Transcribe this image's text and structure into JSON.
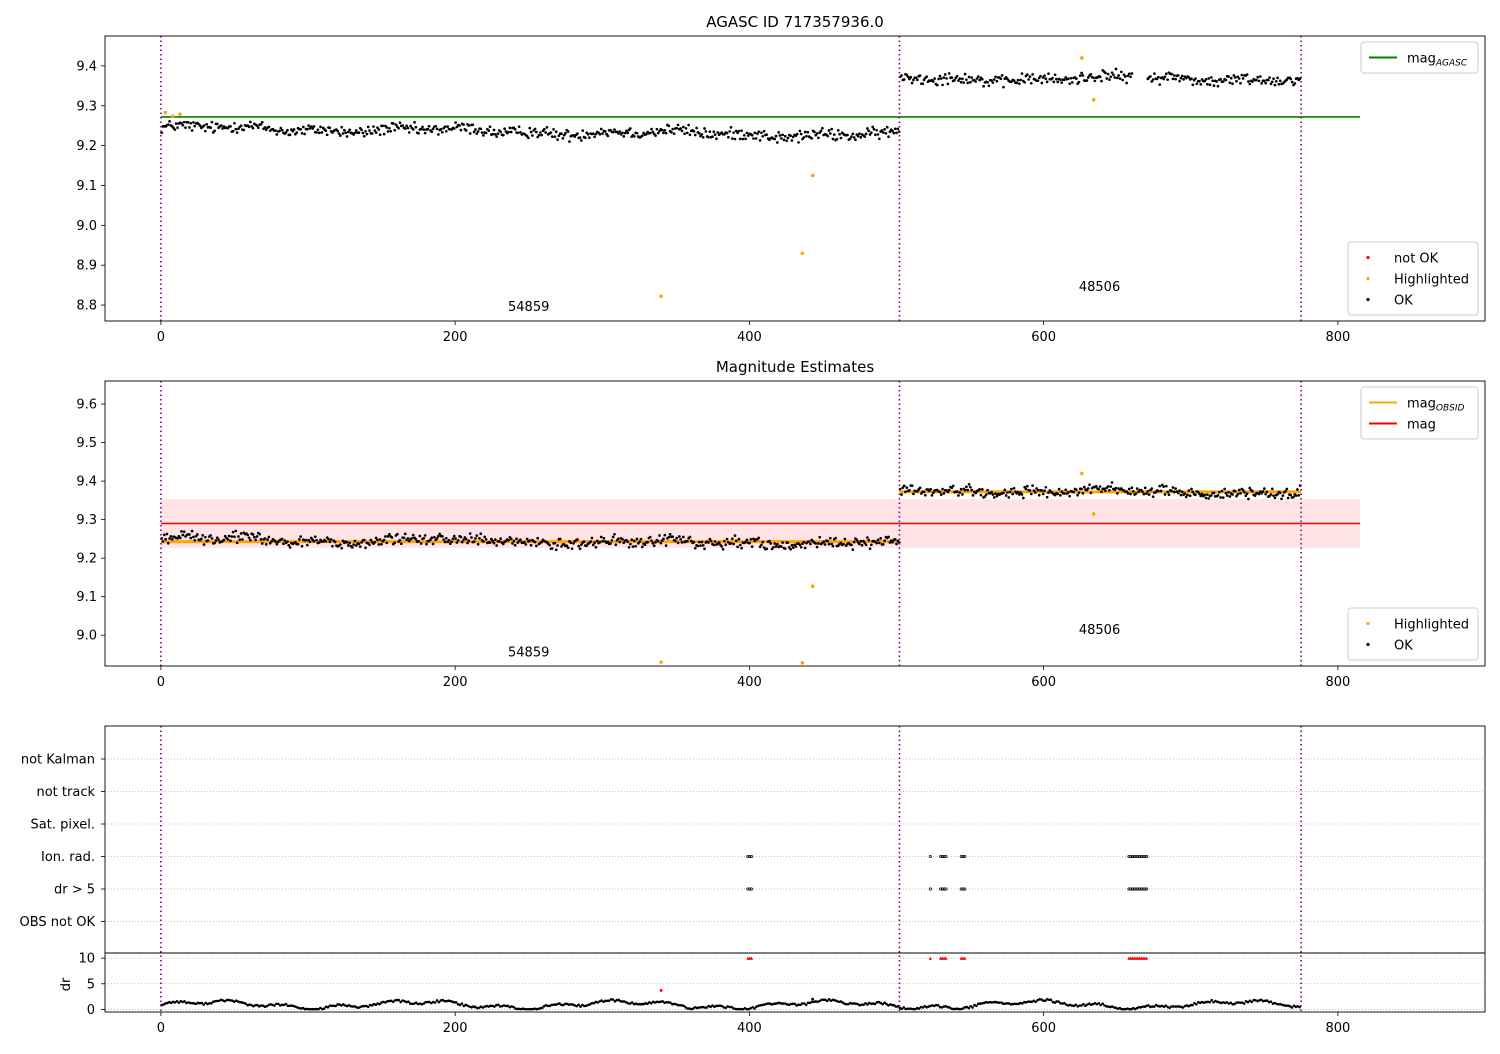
{
  "chart_data": [
    {
      "type": "scatter",
      "title": "AGASC ID 717357936.0",
      "xlim": [
        -38,
        900
      ],
      "ylim": [
        8.76,
        9.475
      ],
      "x_ticks": [
        0,
        200,
        400,
        600,
        800
      ],
      "y_ticks": [
        8.8,
        8.9,
        9.0,
        9.1,
        9.2,
        9.3,
        9.4
      ],
      "y_tick_format": 1,
      "vlines": [
        0,
        502,
        775
      ],
      "hlines": [
        {
          "name": "mag",
          "sub": "AGASC",
          "y": 9.272,
          "x0": 0,
          "x1": 815,
          "color": "#008000"
        }
      ],
      "text_labels": [
        {
          "text": "54859",
          "x": 250,
          "y": 8.785
        },
        {
          "text": "48506",
          "x": 638,
          "y": 8.835
        }
      ],
      "segments": [
        {
          "x0": 0,
          "x1": 502,
          "base": 9.245,
          "slope": -0.02,
          "noise": 0.011
        },
        {
          "x0": 502,
          "x1": 775,
          "base": 9.368,
          "slope": 0.0,
          "noise": 0.011
        }
      ],
      "gaps": [
        [
          660,
          670
        ]
      ],
      "highlighted": [
        [
          3,
          9.283
        ],
        [
          8,
          9.274
        ],
        [
          13,
          9.279
        ],
        [
          340,
          8.822
        ],
        [
          436,
          8.93
        ],
        [
          443,
          9.125
        ],
        [
          626,
          9.42
        ],
        [
          634,
          9.315
        ]
      ],
      "legends": [
        {
          "position": "top-right",
          "entries": [
            {
              "kind": "line",
              "text": "mag",
              "sub": "AGASC",
              "color": "#008000"
            }
          ]
        },
        {
          "position": "bottom-right",
          "entries": [
            {
              "kind": "marker",
              "text": "not OK",
              "color": "#ff0000"
            },
            {
              "kind": "marker",
              "text": "Highlighted",
              "color": "#ffa500"
            },
            {
              "kind": "marker",
              "text": "OK",
              "color": "#000000"
            }
          ]
        }
      ]
    },
    {
      "type": "scatter",
      "title": "Magnitude Estimates",
      "xlim": [
        -38,
        900
      ],
      "ylim": [
        8.92,
        9.66
      ],
      "x_ticks": [
        0,
        200,
        400,
        600,
        800
      ],
      "y_ticks": [
        9.0,
        9.1,
        9.2,
        9.3,
        9.4,
        9.5,
        9.6
      ],
      "y_tick_format": 1,
      "vlines": [
        0,
        502,
        775
      ],
      "band": {
        "x0": 0,
        "x1": 815,
        "y0": 9.227,
        "y1": 9.353,
        "color": "#ffc0c5"
      },
      "hlines": [
        {
          "name": "mag",
          "y": 9.29,
          "x0": 0,
          "x1": 815,
          "color": "#ff0000"
        },
        {
          "name": "mag OBSID seg 1",
          "y": 9.243,
          "x0": 0,
          "x1": 502,
          "color": "#ffa500"
        },
        {
          "name": "mag OBSID seg 2",
          "y": 9.372,
          "x0": 502,
          "x1": 775,
          "color": "#ffa500"
        }
      ],
      "text_labels": [
        {
          "text": "54859",
          "x": 250,
          "y": 8.945
        },
        {
          "text": "48506",
          "x": 638,
          "y": 9.003
        }
      ],
      "segments": [
        {
          "x0": 0,
          "x1": 502,
          "base": 9.25,
          "slope": -0.012,
          "noise": 0.011
        },
        {
          "x0": 502,
          "x1": 775,
          "base": 9.375,
          "slope": -0.005,
          "noise": 0.011
        }
      ],
      "gaps": [],
      "highlighted": [
        [
          340,
          8.93
        ],
        [
          436,
          8.928
        ],
        [
          443,
          9.127
        ],
        [
          626,
          9.42
        ],
        [
          634,
          9.315
        ]
      ],
      "legends": [
        {
          "position": "top-right",
          "entries": [
            {
              "kind": "line",
              "text": "mag",
              "sub": "OBSID",
              "color": "#ffa500"
            },
            {
              "kind": "line",
              "text": "mag",
              "color": "#ff0000"
            }
          ]
        },
        {
          "position": "bottom-right",
          "entries": [
            {
              "kind": "marker",
              "text": "Highlighted",
              "color": "#ffa500"
            },
            {
              "kind": "marker",
              "text": "OK",
              "color": "#000000"
            }
          ]
        }
      ]
    },
    {
      "type": "scatter",
      "title": "",
      "xlim": [
        -38,
        900
      ],
      "x_ticks": [
        0,
        200,
        400,
        600,
        800
      ],
      "vlines": [
        0,
        502,
        775
      ],
      "flag_labels": [
        "not Kalman",
        "not track",
        "Sat. pixel.",
        "Ion. rad.",
        "dr > 5",
        "OBS not OK"
      ],
      "flag_points": {
        "Ion. rad.": [
          [
            399,
            402
          ],
          [
            523,
            524
          ],
          [
            530,
            534
          ],
          [
            544,
            547
          ],
          [
            658,
            671
          ]
        ],
        "dr > 5": [
          [
            399,
            402
          ],
          [
            523,
            524
          ],
          [
            530,
            534
          ],
          [
            544,
            547
          ],
          [
            658,
            671
          ]
        ]
      },
      "dr": {
        "ylabel": "dr",
        "ylim": [
          -0.5,
          11
        ],
        "y_ticks": [
          0,
          5,
          10
        ],
        "clip_value": 10,
        "clipped_ranges": [
          [
            399,
            402
          ],
          [
            523,
            524
          ],
          [
            530,
            534
          ],
          [
            544,
            547
          ],
          [
            658,
            671
          ]
        ],
        "extra_points": [
          [
            340,
            3.7,
            "#ff0000"
          ],
          [
            443,
            2.0,
            "#000000"
          ]
        ]
      }
    }
  ]
}
